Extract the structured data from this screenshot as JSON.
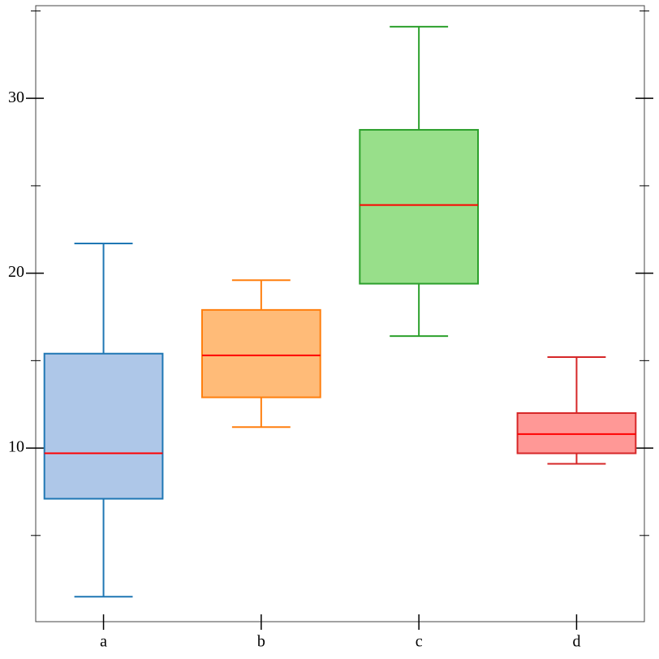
{
  "chart_data": {
    "type": "box",
    "categories": [
      "a",
      "b",
      "c",
      "d"
    ],
    "whisker_low": [
      1.5,
      11.2,
      16.4,
      9.1
    ],
    "q1": [
      7.1,
      12.9,
      19.4,
      9.7
    ],
    "median": [
      9.7,
      15.3,
      23.9,
      10.8
    ],
    "q3": [
      15.4,
      17.9,
      28.2,
      12.0
    ],
    "whisker_high": [
      21.7,
      19.6,
      34.1,
      15.2
    ],
    "colors": [
      "#1f77b4",
      "#ff7f0e",
      "#2ca02c",
      "#d62728"
    ],
    "fill_colors": [
      "#aec7e8",
      "#ffbb78",
      "#98df8a",
      "#ff9896"
    ],
    "median_color": "#ff0000",
    "ylim": [
      0.07,
      35.3
    ],
    "yticks": [
      10,
      20,
      30
    ],
    "yticks_minor": [
      5,
      15,
      25,
      35
    ]
  }
}
